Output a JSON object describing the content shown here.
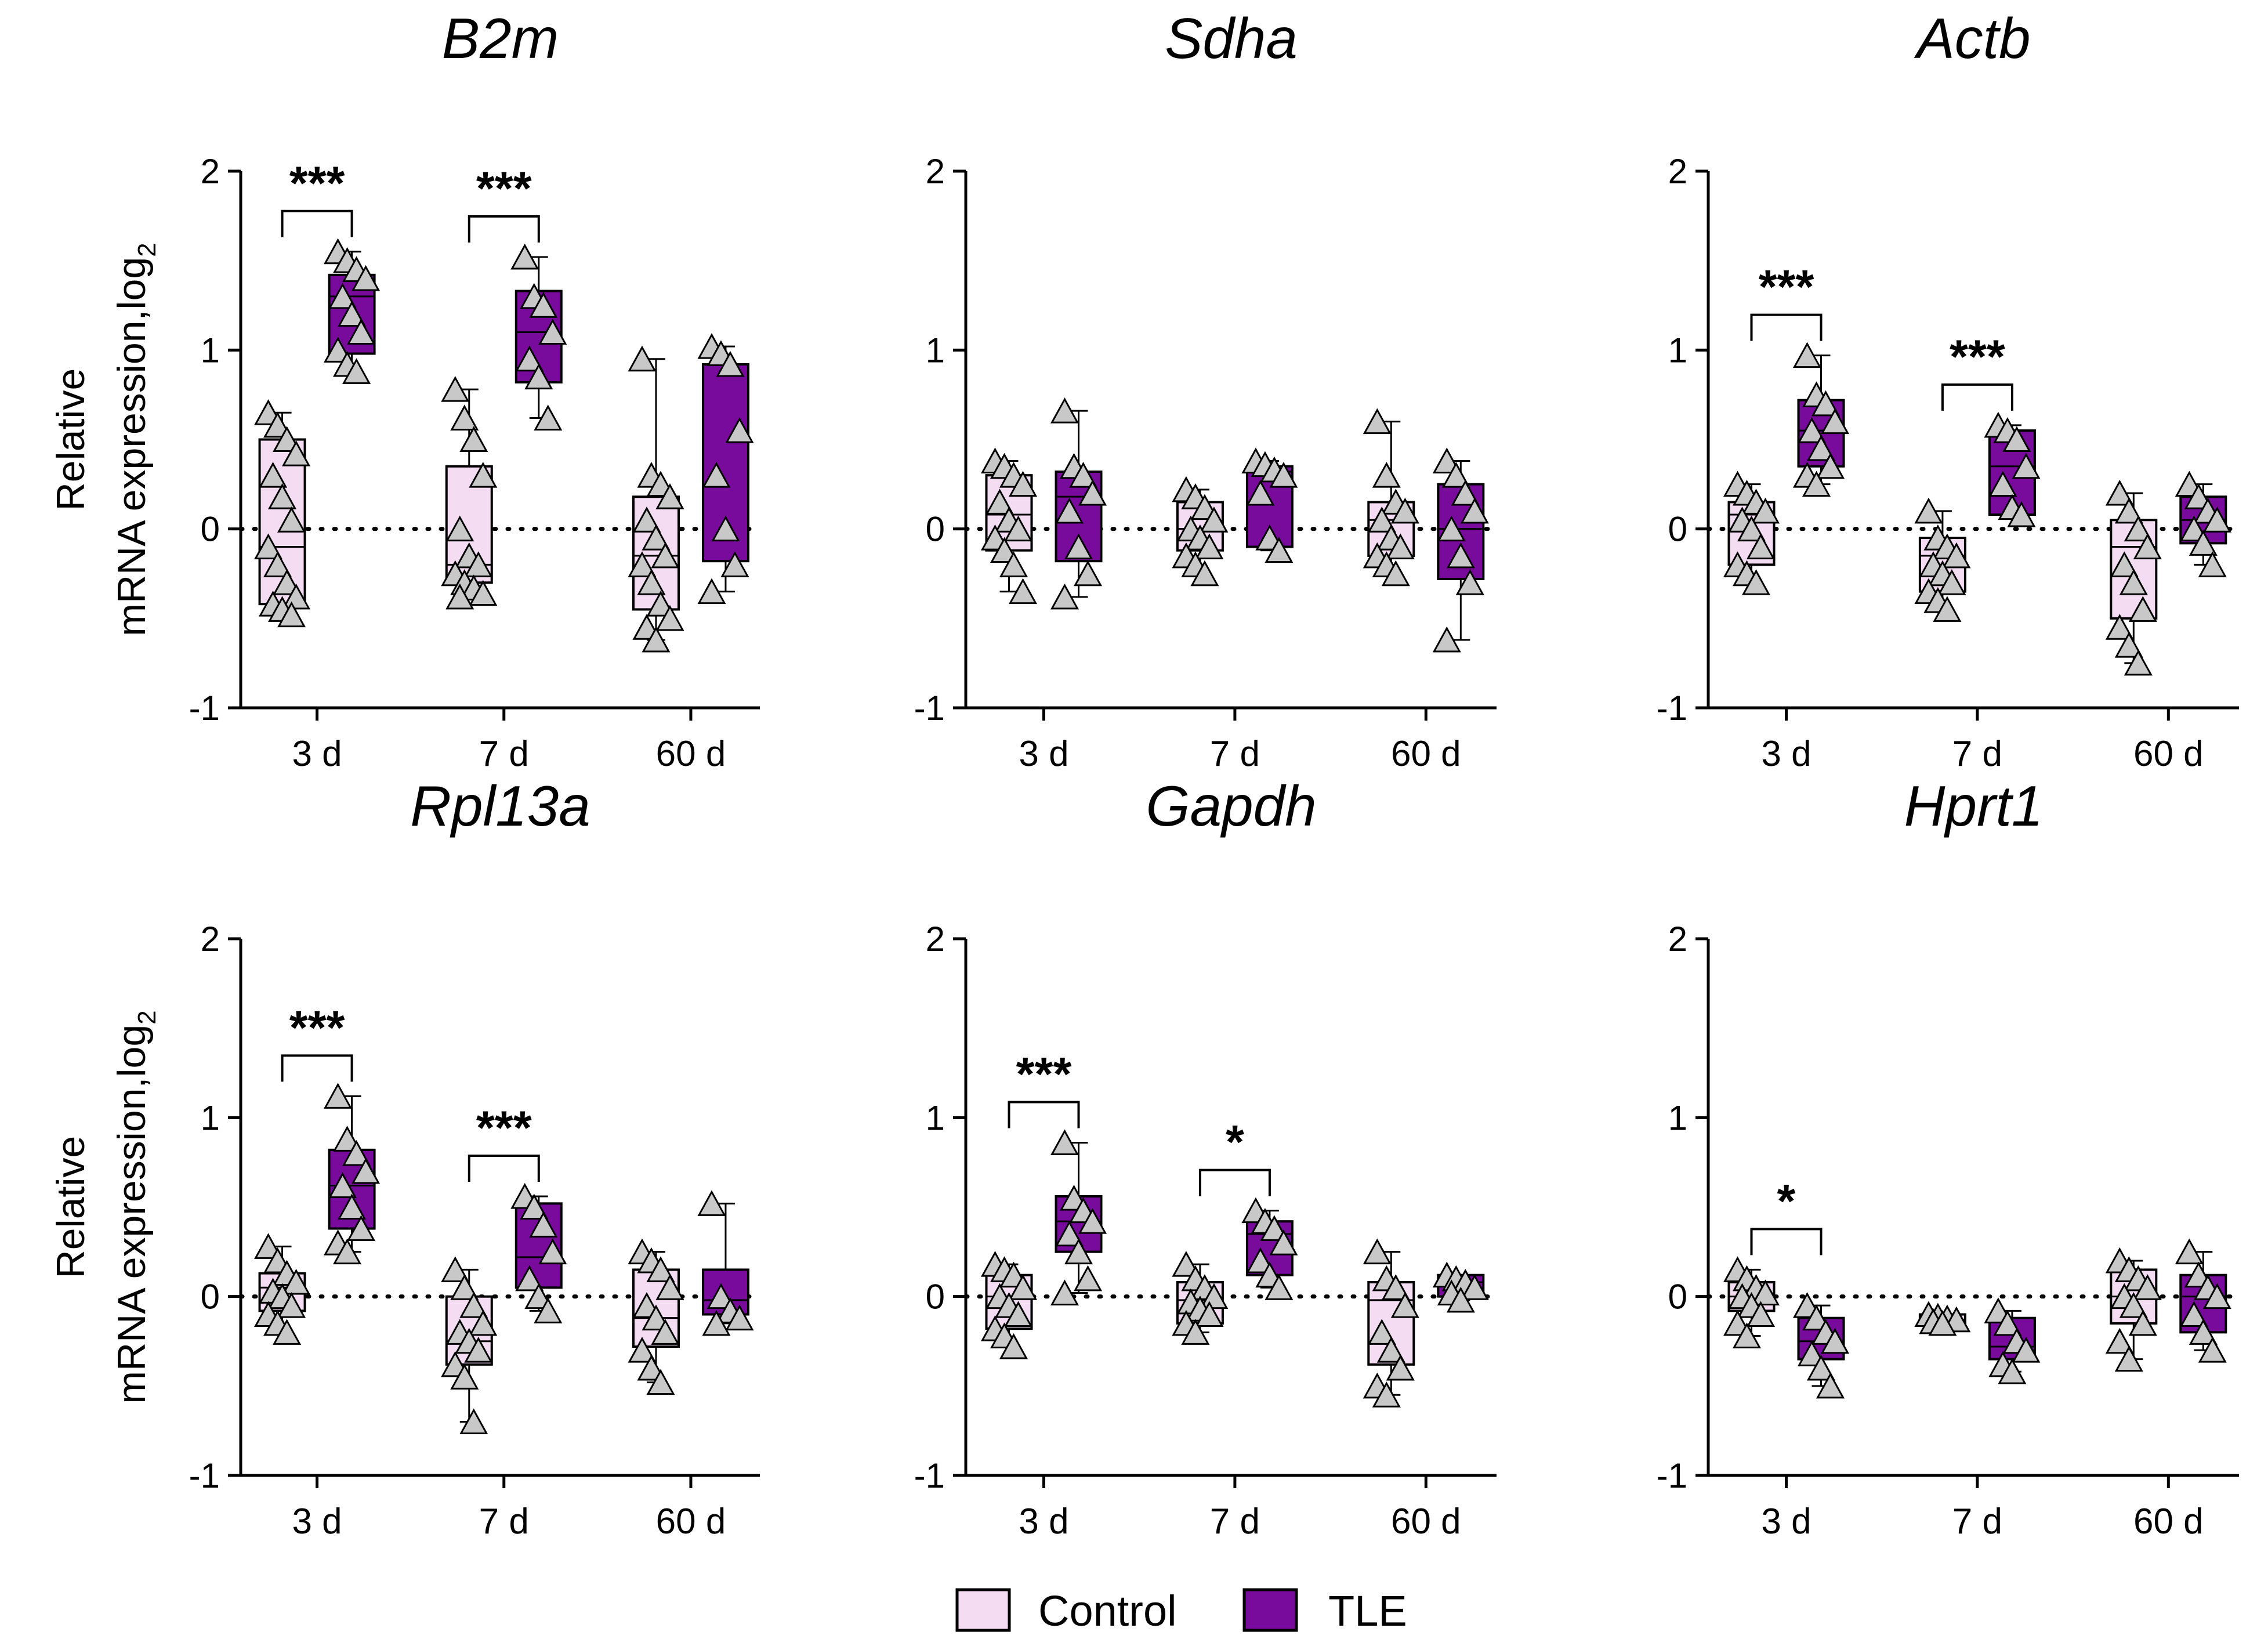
{
  "colors": {
    "control_fill": "#f4dcf3",
    "tle_fill": "#780a9c",
    "point_fill": "#c8c8c8",
    "stroke": "#000000"
  },
  "legend": {
    "items": [
      {
        "label": "Control",
        "color": "#f4dcf3"
      },
      {
        "label": "TLE",
        "color": "#780a9c"
      }
    ]
  },
  "chart_data": [
    {
      "type": "box",
      "title": "B2m",
      "ylabel_line1": "Relative",
      "ylabel_line2": "mRNA expression,log",
      "ylabel_sub": "2",
      "ylim": [
        -1,
        2
      ],
      "yticks": [
        -1,
        0,
        1,
        2
      ],
      "ytick_labels": [
        "-1",
        "0",
        "1",
        "2"
      ],
      "categories": [
        "3 d",
        "7 d",
        "60 d"
      ],
      "reference_line": 0,
      "series": [
        {
          "name": "Control",
          "boxes": [
            {
              "min": -0.48,
              "q1": -0.42,
              "median": -0.1,
              "q3": 0.5,
              "max": 0.65,
              "points": [
                0.65,
                0.58,
                0.5,
                0.42,
                0.3,
                0.18,
                0.05,
                -0.1,
                -0.2,
                -0.3,
                -0.38,
                -0.42,
                -0.45,
                -0.48
              ]
            },
            {
              "min": -0.38,
              "q1": -0.3,
              "median": -0.2,
              "q3": 0.35,
              "max": 0.78,
              "points": [
                0.78,
                0.62,
                0.5,
                0.3,
                0.0,
                -0.15,
                -0.2,
                -0.25,
                -0.3,
                -0.33,
                -0.36,
                -0.38
              ]
            },
            {
              "min": -0.62,
              "q1": -0.45,
              "median": -0.15,
              "q3": 0.18,
              "max": 0.95,
              "points": [
                0.95,
                0.3,
                0.25,
                0.18,
                0.05,
                -0.05,
                -0.15,
                -0.2,
                -0.3,
                -0.42,
                -0.5,
                -0.55,
                -0.62
              ]
            }
          ]
        },
        {
          "name": "TLE",
          "boxes": [
            {
              "min": 0.88,
              "q1": 0.98,
              "median": 1.3,
              "q3": 1.42,
              "max": 1.55,
              "points": [
                1.55,
                1.5,
                1.45,
                1.4,
                1.3,
                1.2,
                1.1,
                1.0,
                0.92,
                0.88
              ]
            },
            {
              "min": 0.62,
              "q1": 0.82,
              "median": 1.1,
              "q3": 1.33,
              "max": 1.52,
              "points": [
                1.52,
                1.3,
                1.25,
                1.1,
                0.95,
                0.85,
                0.62
              ]
            },
            {
              "min": -0.35,
              "q1": -0.18,
              "median": 0.92,
              "q3": 0.92,
              "max": 1.02,
              "points": [
                1.02,
                0.98,
                0.92,
                0.55,
                0.3,
                0.0,
                -0.2,
                -0.35
              ]
            }
          ]
        }
      ],
      "significance": [
        {
          "category_index": 0,
          "label": "***"
        },
        {
          "category_index": 1,
          "label": "***"
        }
      ]
    },
    {
      "type": "box",
      "title": "Sdha",
      "ylim": [
        -1,
        2
      ],
      "yticks": [
        -1,
        0,
        1,
        2
      ],
      "ytick_labels": [
        "-1",
        "0",
        "1",
        "2"
      ],
      "categories": [
        "3 d",
        "7 d",
        "60 d"
      ],
      "reference_line": 0,
      "series": [
        {
          "name": "Control",
          "boxes": [
            {
              "min": -0.35,
              "q1": -0.12,
              "median": 0.08,
              "q3": 0.3,
              "max": 0.38,
              "points": [
                0.38,
                0.35,
                0.3,
                0.25,
                0.15,
                0.05,
                0.0,
                -0.05,
                -0.12,
                -0.2,
                -0.35
              ]
            },
            {
              "min": -0.25,
              "q1": -0.12,
              "median": 0.0,
              "q3": 0.15,
              "max": 0.22,
              "points": [
                0.22,
                0.18,
                0.12,
                0.05,
                0.0,
                -0.05,
                -0.1,
                -0.15,
                -0.2,
                -0.25
              ]
            },
            {
              "min": -0.25,
              "q1": -0.15,
              "median": 0.05,
              "q3": 0.15,
              "max": 0.6,
              "points": [
                0.6,
                0.3,
                0.15,
                0.1,
                0.05,
                -0.05,
                -0.1,
                -0.15,
                -0.2,
                -0.25
              ]
            }
          ]
        },
        {
          "name": "TLE",
          "boxes": [
            {
              "min": -0.38,
              "q1": -0.18,
              "median": 0.18,
              "q3": 0.32,
              "max": 0.66,
              "points": [
                0.66,
                0.35,
                0.3,
                0.2,
                0.1,
                -0.1,
                -0.25,
                -0.38
              ]
            },
            {
              "min": -0.12,
              "q1": -0.1,
              "median": 0.32,
              "q3": 0.35,
              "max": 0.38,
              "points": [
                0.38,
                0.36,
                0.33,
                0.3,
                0.2,
                -0.05,
                -0.12
              ]
            },
            {
              "min": -0.62,
              "q1": -0.28,
              "median": 0.0,
              "q3": 0.25,
              "max": 0.38,
              "points": [
                0.38,
                0.3,
                0.2,
                0.1,
                0.0,
                -0.15,
                -0.3,
                -0.62
              ]
            }
          ]
        }
      ],
      "significance": []
    },
    {
      "type": "box",
      "title": "Actb",
      "ylim": [
        -1,
        2
      ],
      "yticks": [
        -1,
        0,
        1,
        2
      ],
      "ytick_labels": [
        "-1",
        "0",
        "1",
        "2"
      ],
      "categories": [
        "3 d",
        "7 d",
        "60 d"
      ],
      "reference_line": 0,
      "series": [
        {
          "name": "Control",
          "boxes": [
            {
              "min": -0.3,
              "q1": -0.2,
              "median": 0.08,
              "q3": 0.15,
              "max": 0.25,
              "points": [
                0.25,
                0.2,
                0.15,
                0.1,
                0.05,
                0.0,
                -0.1,
                -0.2,
                -0.25,
                -0.3
              ]
            },
            {
              "min": -0.45,
              "q1": -0.35,
              "median": -0.15,
              "q3": -0.05,
              "max": 0.1,
              "points": [
                0.1,
                -0.05,
                -0.1,
                -0.15,
                -0.2,
                -0.25,
                -0.3,
                -0.35,
                -0.4,
                -0.45
              ]
            },
            {
              "min": -0.75,
              "q1": -0.5,
              "median": -0.1,
              "q3": 0.05,
              "max": 0.2,
              "points": [
                0.2,
                0.1,
                0.0,
                -0.1,
                -0.2,
                -0.3,
                -0.45,
                -0.55,
                -0.65,
                -0.75
              ]
            }
          ]
        },
        {
          "name": "TLE",
          "boxes": [
            {
              "min": 0.25,
              "q1": 0.35,
              "median": 0.55,
              "q3": 0.72,
              "max": 0.97,
              "points": [
                0.97,
                0.75,
                0.7,
                0.6,
                0.55,
                0.45,
                0.35,
                0.3,
                0.25
              ]
            },
            {
              "min": 0.08,
              "q1": 0.08,
              "median": 0.35,
              "q3": 0.55,
              "max": 0.58,
              "points": [
                0.58,
                0.55,
                0.5,
                0.35,
                0.25,
                0.12,
                0.08
              ]
            },
            {
              "min": -0.2,
              "q1": -0.08,
              "median": 0.05,
              "q3": 0.18,
              "max": 0.25,
              "points": [
                0.25,
                0.18,
                0.1,
                0.05,
                0.0,
                -0.08,
                -0.2
              ]
            }
          ]
        }
      ],
      "significance": [
        {
          "category_index": 0,
          "label": "***"
        },
        {
          "category_index": 1,
          "label": "***"
        }
      ]
    },
    {
      "type": "box",
      "title": "Rpl13a",
      "ylabel_line1": "Relative",
      "ylabel_line2": "mRNA expression,log",
      "ylabel_sub": "2",
      "ylim": [
        -1,
        2
      ],
      "yticks": [
        -1,
        0,
        1,
        2
      ],
      "ytick_labels": [
        "-1",
        "0",
        "1",
        "2"
      ],
      "categories": [
        "3 d",
        "7 d",
        "60 d"
      ],
      "reference_line": 0,
      "series": [
        {
          "name": "Control",
          "boxes": [
            {
              "min": -0.2,
              "q1": -0.08,
              "median": 0.05,
              "q3": 0.13,
              "max": 0.28,
              "points": [
                0.28,
                0.2,
                0.13,
                0.08,
                0.03,
                0.0,
                -0.05,
                -0.1,
                -0.15,
                -0.2
              ]
            },
            {
              "min": -0.7,
              "q1": -0.38,
              "median": -0.25,
              "q3": 0.0,
              "max": 0.15,
              "points": [
                0.15,
                0.05,
                -0.05,
                -0.15,
                -0.2,
                -0.25,
                -0.3,
                -0.38,
                -0.45,
                -0.7
              ]
            },
            {
              "min": -0.48,
              "q1": -0.28,
              "median": -0.12,
              "q3": 0.15,
              "max": 0.25,
              "points": [
                0.25,
                0.2,
                0.15,
                0.05,
                -0.05,
                -0.12,
                -0.2,
                -0.3,
                -0.4,
                -0.48
              ]
            }
          ]
        },
        {
          "name": "TLE",
          "boxes": [
            {
              "min": 0.25,
              "q1": 0.38,
              "median": 0.62,
              "q3": 0.82,
              "max": 1.12,
              "points": [
                1.12,
                0.88,
                0.8,
                0.7,
                0.62,
                0.5,
                0.38,
                0.3,
                0.25
              ]
            },
            {
              "min": -0.08,
              "q1": 0.05,
              "median": 0.22,
              "q3": 0.52,
              "max": 0.56,
              "points": [
                0.56,
                0.5,
                0.4,
                0.25,
                0.1,
                0.0,
                -0.08
              ]
            },
            {
              "min": -0.15,
              "q1": -0.1,
              "median": -0.02,
              "q3": 0.15,
              "max": 0.52,
              "points": [
                0.52,
                0.0,
                -0.08,
                -0.12,
                -0.15
              ]
            }
          ]
        }
      ],
      "significance": [
        {
          "category_index": 0,
          "label": "***"
        },
        {
          "category_index": 1,
          "label": "***"
        }
      ]
    },
    {
      "type": "box",
      "title": "Gapdh",
      "ylim": [
        -1,
        2
      ],
      "yticks": [
        -1,
        0,
        1,
        2
      ],
      "ytick_labels": [
        "-1",
        "0",
        "1",
        "2"
      ],
      "categories": [
        "3 d",
        "7 d",
        "60 d"
      ],
      "reference_line": 0,
      "series": [
        {
          "name": "Control",
          "boxes": [
            {
              "min": -0.28,
              "q1": -0.18,
              "median": 0.0,
              "q3": 0.12,
              "max": 0.18,
              "points": [
                0.18,
                0.15,
                0.12,
                0.05,
                0.0,
                -0.05,
                -0.1,
                -0.18,
                -0.22,
                -0.28
              ]
            },
            {
              "min": -0.2,
              "q1": -0.15,
              "median": -0.02,
              "q3": 0.08,
              "max": 0.18,
              "points": [
                0.18,
                0.1,
                0.05,
                0.0,
                -0.03,
                -0.07,
                -0.1,
                -0.15,
                -0.2
              ]
            },
            {
              "min": -0.55,
              "q1": -0.38,
              "median": -0.02,
              "q3": 0.08,
              "max": 0.25,
              "points": [
                0.25,
                0.1,
                0.05,
                -0.05,
                -0.2,
                -0.3,
                -0.4,
                -0.5,
                -0.55
              ]
            }
          ]
        },
        {
          "name": "TLE",
          "boxes": [
            {
              "min": 0.02,
              "q1": 0.25,
              "median": 0.42,
              "q3": 0.56,
              "max": 0.86,
              "points": [
                0.86,
                0.55,
                0.48,
                0.42,
                0.35,
                0.25,
                0.1,
                0.02
              ]
            },
            {
              "min": 0.05,
              "q1": 0.12,
              "median": 0.35,
              "q3": 0.42,
              "max": 0.48,
              "points": [
                0.48,
                0.42,
                0.38,
                0.3,
                0.2,
                0.12,
                0.05
              ]
            },
            {
              "min": -0.02,
              "q1": 0.0,
              "median": 0.08,
              "q3": 0.12,
              "max": 0.12,
              "points": [
                0.12,
                0.1,
                0.08,
                0.05,
                0.02,
                -0.02
              ]
            }
          ]
        }
      ],
      "significance": [
        {
          "category_index": 0,
          "label": "***"
        },
        {
          "category_index": 1,
          "label": "*"
        }
      ]
    },
    {
      "type": "box",
      "title": "Hprt1",
      "ylim": [
        -1,
        2
      ],
      "yticks": [
        -1,
        0,
        1,
        2
      ],
      "ytick_labels": [
        "-1",
        "0",
        "1",
        "2"
      ],
      "categories": [
        "3 d",
        "7 d",
        "60 d"
      ],
      "reference_line": 0,
      "series": [
        {
          "name": "Control",
          "boxes": [
            {
              "min": -0.22,
              "q1": -0.08,
              "median": 0.0,
              "q3": 0.08,
              "max": 0.15,
              "points": [
                0.15,
                0.1,
                0.05,
                0.02,
                0.0,
                -0.05,
                -0.1,
                -0.15,
                -0.22
              ]
            },
            {
              "min": -0.15,
              "q1": -0.15,
              "median": -0.13,
              "q3": -0.1,
              "max": -0.1,
              "points": [
                -0.1,
                -0.11,
                -0.12,
                -0.13,
                -0.14,
                -0.15
              ]
            },
            {
              "min": -0.35,
              "q1": -0.15,
              "median": 0.0,
              "q3": 0.15,
              "max": 0.2,
              "points": [
                0.2,
                0.15,
                0.1,
                0.05,
                0.0,
                -0.05,
                -0.15,
                -0.25,
                -0.35
              ]
            }
          ]
        },
        {
          "name": "TLE",
          "boxes": [
            {
              "min": -0.5,
              "q1": -0.35,
              "median": -0.25,
              "q3": -0.12,
              "max": -0.05,
              "points": [
                -0.05,
                -0.12,
                -0.2,
                -0.25,
                -0.32,
                -0.4,
                -0.5
              ]
            },
            {
              "min": -0.42,
              "q1": -0.35,
              "median": -0.28,
              "q3": -0.12,
              "max": -0.08,
              "points": [
                -0.08,
                -0.15,
                -0.25,
                -0.3,
                -0.38,
                -0.42
              ]
            },
            {
              "min": -0.3,
              "q1": -0.2,
              "median": 0.0,
              "q3": 0.12,
              "max": 0.25,
              "points": [
                0.25,
                0.12,
                0.05,
                0.0,
                -0.1,
                -0.2,
                -0.3
              ]
            }
          ]
        }
      ],
      "significance": [
        {
          "category_index": 0,
          "label": "*"
        }
      ]
    }
  ]
}
